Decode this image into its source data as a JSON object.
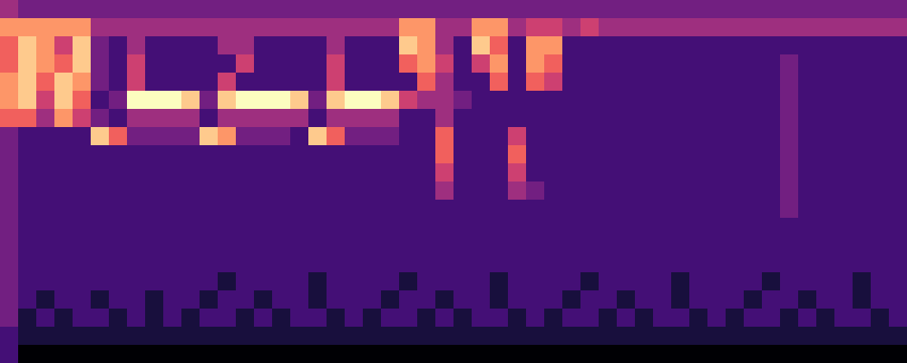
{
  "chart_data": {
    "type": "heatmap",
    "tick_labels": false,
    "cells": [
      [
        4,
        3,
        3,
        3,
        3,
        3,
        3,
        3,
        3,
        3,
        3,
        3,
        3,
        3,
        3,
        3,
        3,
        3,
        3,
        3,
        3,
        3,
        3,
        3,
        3,
        3,
        3,
        3,
        3,
        3,
        3,
        3,
        3,
        3,
        3,
        3,
        3,
        3,
        3,
        3,
        3,
        3,
        3,
        3,
        3,
        3,
        3,
        3,
        3,
        3
      ],
      [
        7,
        7,
        7,
        7,
        7,
        4,
        4,
        4,
        4,
        4,
        4,
        4,
        4,
        4,
        4,
        4,
        4,
        4,
        4,
        4,
        4,
        4,
        7,
        7,
        4,
        4,
        7,
        7,
        4,
        5,
        5,
        4,
        5,
        4,
        4,
        4,
        4,
        4,
        4,
        4,
        4,
        4,
        4,
        4,
        4,
        4,
        4,
        4,
        4,
        4
      ],
      [
        6,
        8,
        7,
        5,
        8,
        3,
        2,
        4,
        2,
        2,
        2,
        2,
        4,
        4,
        2,
        2,
        2,
        2,
        4,
        2,
        2,
        2,
        8,
        7,
        4,
        2,
        8,
        6,
        2,
        7,
        7,
        2,
        2,
        2,
        2,
        2,
        2,
        2,
        2,
        2,
        2,
        2,
        2,
        2,
        2,
        2,
        2,
        2,
        2,
        2
      ],
      [
        6,
        8,
        7,
        6,
        8,
        3,
        2,
        5,
        2,
        2,
        2,
        2,
        2,
        5,
        2,
        2,
        2,
        2,
        5,
        2,
        2,
        2,
        6,
        7,
        5,
        2,
        5,
        7,
        2,
        7,
        6,
        2,
        2,
        2,
        2,
        2,
        2,
        2,
        2,
        2,
        2,
        2,
        2,
        3,
        2,
        2,
        2,
        2,
        2,
        2
      ],
      [
        7,
        8,
        6,
        8,
        7,
        3,
        2,
        5,
        2,
        2,
        2,
        2,
        5,
        2,
        2,
        2,
        2,
        2,
        5,
        2,
        2,
        2,
        2,
        6,
        4,
        2,
        2,
        6,
        2,
        6,
        5,
        2,
        2,
        2,
        2,
        2,
        2,
        2,
        2,
        2,
        2,
        2,
        2,
        3,
        2,
        2,
        2,
        2,
        2,
        2
      ],
      [
        7,
        8,
        5,
        8,
        6,
        2,
        3,
        9,
        9,
        9,
        8,
        3,
        8,
        9,
        9,
        9,
        8,
        3,
        8,
        9,
        9,
        8,
        5,
        4,
        4,
        3,
        2,
        2,
        2,
        2,
        2,
        2,
        2,
        2,
        2,
        2,
        2,
        2,
        2,
        2,
        2,
        2,
        2,
        3,
        2,
        2,
        2,
        2,
        2,
        2
      ],
      [
        6,
        6,
        4,
        7,
        5,
        3,
        2,
        4,
        4,
        4,
        4,
        2,
        4,
        4,
        4,
        4,
        4,
        2,
        4,
        4,
        4,
        4,
        2,
        2,
        4,
        2,
        2,
        2,
        2,
        2,
        2,
        2,
        2,
        2,
        2,
        2,
        2,
        2,
        2,
        2,
        2,
        2,
        2,
        3,
        2,
        2,
        2,
        2,
        2,
        2
      ],
      [
        3,
        2,
        2,
        2,
        2,
        8,
        6,
        3,
        3,
        3,
        3,
        8,
        7,
        3,
        3,
        3,
        2,
        8,
        6,
        3,
        3,
        3,
        2,
        2,
        6,
        2,
        2,
        2,
        5,
        2,
        2,
        2,
        2,
        2,
        2,
        2,
        2,
        2,
        2,
        2,
        2,
        2,
        2,
        3,
        2,
        2,
        2,
        2,
        2,
        2
      ],
      [
        3,
        2,
        2,
        2,
        2,
        2,
        2,
        2,
        2,
        2,
        2,
        2,
        2,
        2,
        2,
        2,
        2,
        2,
        2,
        2,
        2,
        2,
        2,
        2,
        6,
        2,
        2,
        2,
        6,
        2,
        2,
        2,
        2,
        2,
        2,
        2,
        2,
        2,
        2,
        2,
        2,
        2,
        2,
        3,
        2,
        2,
        2,
        2,
        2,
        2
      ],
      [
        3,
        2,
        2,
        2,
        2,
        2,
        2,
        2,
        2,
        2,
        2,
        2,
        2,
        2,
        2,
        2,
        2,
        2,
        2,
        2,
        2,
        2,
        2,
        2,
        5,
        2,
        2,
        2,
        5,
        2,
        2,
        2,
        2,
        2,
        2,
        2,
        2,
        2,
        2,
        2,
        2,
        2,
        2,
        3,
        2,
        2,
        2,
        2,
        2,
        2
      ],
      [
        3,
        2,
        2,
        2,
        2,
        2,
        2,
        2,
        2,
        2,
        2,
        2,
        2,
        2,
        2,
        2,
        2,
        2,
        2,
        2,
        2,
        2,
        2,
        2,
        4,
        2,
        2,
        2,
        4,
        3,
        2,
        2,
        2,
        2,
        2,
        2,
        2,
        2,
        2,
        2,
        2,
        2,
        2,
        3,
        2,
        2,
        2,
        2,
        2,
        2
      ],
      [
        3,
        2,
        2,
        2,
        2,
        2,
        2,
        2,
        2,
        2,
        2,
        2,
        2,
        2,
        2,
        2,
        2,
        2,
        2,
        2,
        2,
        2,
        2,
        2,
        2,
        2,
        2,
        2,
        2,
        2,
        2,
        2,
        2,
        2,
        2,
        2,
        2,
        2,
        2,
        2,
        2,
        2,
        2,
        3,
        2,
        2,
        2,
        2,
        2,
        2
      ],
      [
        3,
        2,
        2,
        2,
        2,
        2,
        2,
        2,
        2,
        2,
        2,
        2,
        2,
        2,
        2,
        2,
        2,
        2,
        2,
        2,
        2,
        2,
        2,
        2,
        2,
        2,
        2,
        2,
        2,
        2,
        2,
        2,
        2,
        2,
        2,
        2,
        2,
        2,
        2,
        2,
        2,
        2,
        2,
        2,
        2,
        2,
        2,
        2,
        2,
        2
      ],
      [
        3,
        2,
        2,
        2,
        2,
        2,
        2,
        2,
        2,
        2,
        2,
        2,
        2,
        2,
        2,
        2,
        2,
        2,
        2,
        2,
        2,
        2,
        2,
        2,
        2,
        2,
        2,
        2,
        2,
        2,
        2,
        2,
        2,
        2,
        2,
        2,
        2,
        2,
        2,
        2,
        2,
        2,
        2,
        2,
        2,
        2,
        2,
        2,
        2,
        2
      ],
      [
        3,
        2,
        2,
        2,
        2,
        2,
        2,
        2,
        2,
        2,
        2,
        2,
        2,
        2,
        2,
        2,
        2,
        2,
        2,
        2,
        2,
        2,
        2,
        2,
        2,
        2,
        2,
        2,
        2,
        2,
        2,
        2,
        2,
        2,
        2,
        2,
        2,
        2,
        2,
        2,
        2,
        2,
        2,
        2,
        2,
        2,
        2,
        2,
        2,
        2
      ],
      [
        3,
        2,
        2,
        2,
        2,
        2,
        2,
        2,
        2,
        2,
        2,
        2,
        1,
        2,
        2,
        2,
        2,
        1,
        2,
        2,
        2,
        2,
        1,
        2,
        2,
        2,
        2,
        1,
        2,
        2,
        2,
        2,
        1,
        2,
        2,
        2,
        2,
        1,
        2,
        2,
        2,
        2,
        1,
        2,
        2,
        2,
        2,
        1,
        2,
        2
      ],
      [
        3,
        2,
        1,
        2,
        2,
        1,
        2,
        2,
        1,
        2,
        2,
        1,
        2,
        2,
        1,
        2,
        2,
        1,
        2,
        2,
        2,
        1,
        2,
        2,
        1,
        2,
        2,
        1,
        2,
        2,
        2,
        1,
        2,
        2,
        1,
        2,
        2,
        1,
        2,
        2,
        2,
        1,
        2,
        2,
        1,
        2,
        2,
        1,
        2,
        2
      ],
      [
        3,
        1,
        2,
        1,
        2,
        2,
        1,
        2,
        1,
        2,
        1,
        2,
        2,
        1,
        2,
        1,
        2,
        2,
        1,
        2,
        1,
        2,
        2,
        1,
        2,
        1,
        2,
        2,
        1,
        2,
        1,
        2,
        2,
        1,
        2,
        1,
        2,
        2,
        1,
        2,
        1,
        2,
        2,
        1,
        2,
        1,
        2,
        2,
        1,
        2
      ],
      [
        2,
        1,
        1,
        1,
        1,
        1,
        1,
        1,
        1,
        1,
        1,
        1,
        1,
        1,
        1,
        1,
        1,
        1,
        1,
        1,
        1,
        1,
        1,
        1,
        1,
        1,
        1,
        1,
        1,
        1,
        1,
        1,
        1,
        1,
        1,
        1,
        1,
        1,
        1,
        1,
        1,
        1,
        1,
        1,
        1,
        1,
        1,
        1,
        1,
        1
      ],
      [
        2,
        0,
        0,
        0,
        0,
        0,
        0,
        0,
        0,
        0,
        0,
        0,
        0,
        0,
        0,
        0,
        0,
        0,
        0,
        0,
        0,
        0,
        0,
        0,
        0,
        0,
        0,
        0,
        0,
        0,
        0,
        0,
        0,
        0,
        0,
        0,
        0,
        0,
        0,
        0,
        0,
        0,
        0,
        0,
        0,
        0,
        0,
        0,
        0,
        0
      ]
    ]
  }
}
